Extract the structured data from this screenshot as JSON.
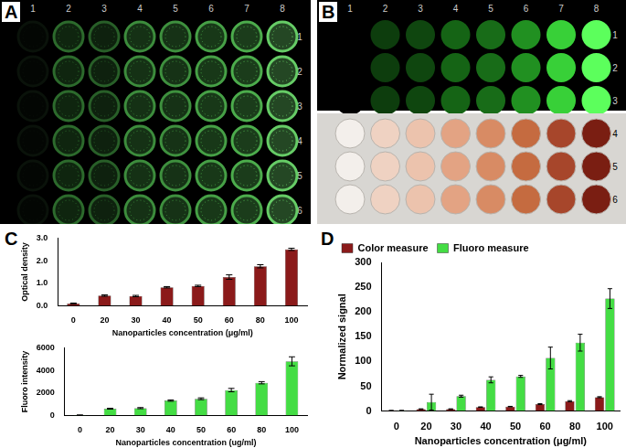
{
  "plates": [
    {
      "label": "A",
      "columns": [
        1,
        2,
        3,
        4,
        5,
        6,
        7,
        8
      ],
      "rows": [
        1,
        2,
        3,
        4,
        5,
        6
      ],
      "colors": [
        "#0a120a",
        "#2c6a2c",
        "#285f28",
        "#3c8c3c",
        "#3e903e",
        "#46a046",
        "#4cac4c",
        "#66cc66"
      ]
    },
    {
      "label": "B",
      "columns": [
        1,
        2,
        3,
        4,
        5,
        6,
        7,
        8
      ],
      "sections": [
        {
          "rows": [
            1,
            2,
            3
          ],
          "colors": [
            "#000000",
            "#0d3d0d",
            "#0f460f",
            "#156415",
            "#186c18",
            "#219021",
            "#38d038",
            "#5cff5c"
          ]
        },
        {
          "rows": [
            4,
            5,
            6
          ],
          "colors": [
            "#f3efeb",
            "#efd2c2",
            "#ecc3ad",
            "#e3a383",
            "#d88b64",
            "#c56b40",
            "#a7462b",
            "#7a1e12"
          ]
        }
      ]
    }
  ],
  "chart_data": [
    {
      "type": "bar",
      "panel_label": "C",
      "x_label": "Nanoparticles concentration (μg/ml)",
      "y_label": "Optical density",
      "categories": [
        "0",
        "20",
        "30",
        "40",
        "50",
        "60",
        "80",
        "100"
      ],
      "values": [
        0.1,
        0.45,
        0.43,
        0.82,
        0.88,
        1.27,
        1.75,
        2.5
      ],
      "errors": [
        0.02,
        0.03,
        0.03,
        0.03,
        0.03,
        0.1,
        0.07,
        0.05
      ],
      "color": "#8b1a1a",
      "grid": false,
      "ylim": [
        0,
        3
      ],
      "yticks": [
        {
          "value": 0,
          "label": "0.0"
        },
        {
          "value": 1,
          "label": "1.0"
        },
        {
          "value": 2,
          "label": "2.0"
        },
        {
          "value": 3,
          "label": "3.0"
        }
      ]
    },
    {
      "type": "bar",
      "x_label": "Nanoparticles concentration (ug/ml)",
      "y_label": "Fluoro intensity",
      "categories": [
        "0",
        "20",
        "30",
        "40",
        "50",
        "60",
        "80",
        "100"
      ],
      "values": [
        30,
        600,
        650,
        1320,
        1480,
        2250,
        2900,
        4800
      ],
      "errors": [
        10,
        40,
        50,
        60,
        80,
        150,
        100,
        400
      ],
      "color": "#44dd44",
      "grid": false,
      "ylim": [
        0,
        6000
      ],
      "yticks": [
        0,
        2000,
        4000,
        6000
      ]
    },
    {
      "type": "bar",
      "panel_label": "D",
      "x_label": "Nanoparticles concentration (μg/ml)",
      "y_label": "Normalized signal",
      "categories": [
        "0",
        "20",
        "30",
        "40",
        "50",
        "60",
        "80",
        "100"
      ],
      "series": [
        {
          "name": "Color measure",
          "color": "#8b1a1a",
          "values": [
            1,
            4,
            4,
            8,
            9,
            14,
            20,
            28
          ],
          "errors": [
            0.2,
            0.5,
            0.5,
            0.5,
            0.5,
            1,
            1,
            1
          ]
        },
        {
          "name": "Fluoro measure",
          "color": "#44dd44",
          "values": [
            1,
            18,
            30,
            63,
            70,
            107,
            138,
            227
          ],
          "errors": [
            0.3,
            16,
            2,
            6,
            2,
            22,
            17,
            20
          ]
        }
      ],
      "legend": "upper left",
      "grid": false,
      "ylim": [
        0,
        300
      ],
      "yticks": [
        0,
        50,
        100,
        150,
        200,
        250,
        300
      ]
    }
  ]
}
